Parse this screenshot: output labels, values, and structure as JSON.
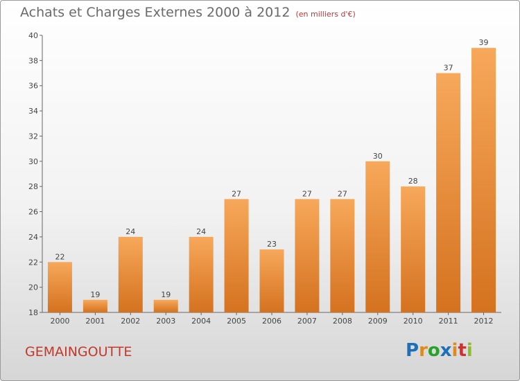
{
  "header": {
    "title": "Achats et Charges Externes 2000 à 2012",
    "subtitle": "(en milliers d'€)"
  },
  "footer": {
    "town": "GEMAINGOUTTE",
    "logo": "Proxiti"
  },
  "colors": {
    "bar_light": "#f7a85a",
    "bar_dark": "#d4721f",
    "title": "#6a6a6a",
    "town": "#c0392b"
  },
  "chart_data": {
    "type": "bar",
    "title": "Achats et Charges Externes 2000 à 2012",
    "subtitle": "(en milliers d'€)",
    "categories": [
      "2000",
      "2001",
      "2002",
      "2003",
      "2004",
      "2005",
      "2006",
      "2007",
      "2008",
      "2009",
      "2010",
      "2011",
      "2012"
    ],
    "values": [
      22,
      19,
      24,
      19,
      24,
      27,
      23,
      27,
      27,
      30,
      28,
      37,
      39
    ],
    "ylim": [
      18,
      40
    ],
    "yticks": [
      18,
      20,
      22,
      24,
      26,
      28,
      30,
      32,
      34,
      36,
      38,
      40
    ],
    "grid": false,
    "data_labels": true
  }
}
